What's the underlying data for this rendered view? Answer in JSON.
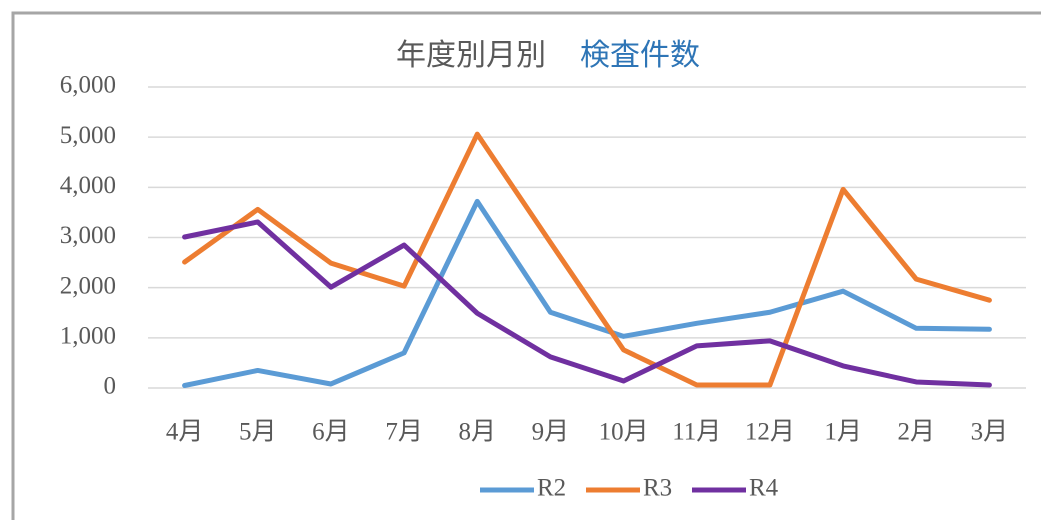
{
  "chart_data": {
    "type": "line",
    "title_parts": [
      {
        "text": "年度別月別",
        "color": "#595959"
      },
      {
        "text": "検査件数",
        "color": "#2e75b6"
      }
    ],
    "categories": [
      "4月",
      "5月",
      "6月",
      "7月",
      "8月",
      "9月",
      "10月",
      "11月",
      "12月",
      "1月",
      "2月",
      "3月"
    ],
    "series": [
      {
        "name": "R2",
        "color": "#5b9bd5",
        "values": [
          50,
          350,
          80,
          700,
          3720,
          1510,
          1030,
          1290,
          1510,
          1930,
          1190,
          1170
        ]
      },
      {
        "name": "R3",
        "color": "#ed7d31",
        "values": [
          2510,
          3560,
          2490,
          2030,
          5060,
          2900,
          760,
          60,
          60,
          3960,
          2170,
          1750
        ]
      },
      {
        "name": "R4",
        "color": "#7030a0",
        "values": [
          3010,
          3310,
          2010,
          2850,
          1490,
          620,
          140,
          840,
          940,
          440,
          120,
          60
        ]
      }
    ],
    "ylim": [
      0,
      6000
    ],
    "yticks": [
      0,
      {
        "value": 1000,
        "label": "1,000"
      },
      {
        "value": 2000,
        "label": "2,000"
      },
      {
        "value": 3000,
        "label": "3,000"
      },
      {
        "value": 4000,
        "label": "4,000"
      },
      {
        "value": 5000,
        "label": "5,000"
      },
      {
        "value": 6000,
        "label": "6,000"
      }
    ],
    "grid": true,
    "legend": "bottom"
  }
}
